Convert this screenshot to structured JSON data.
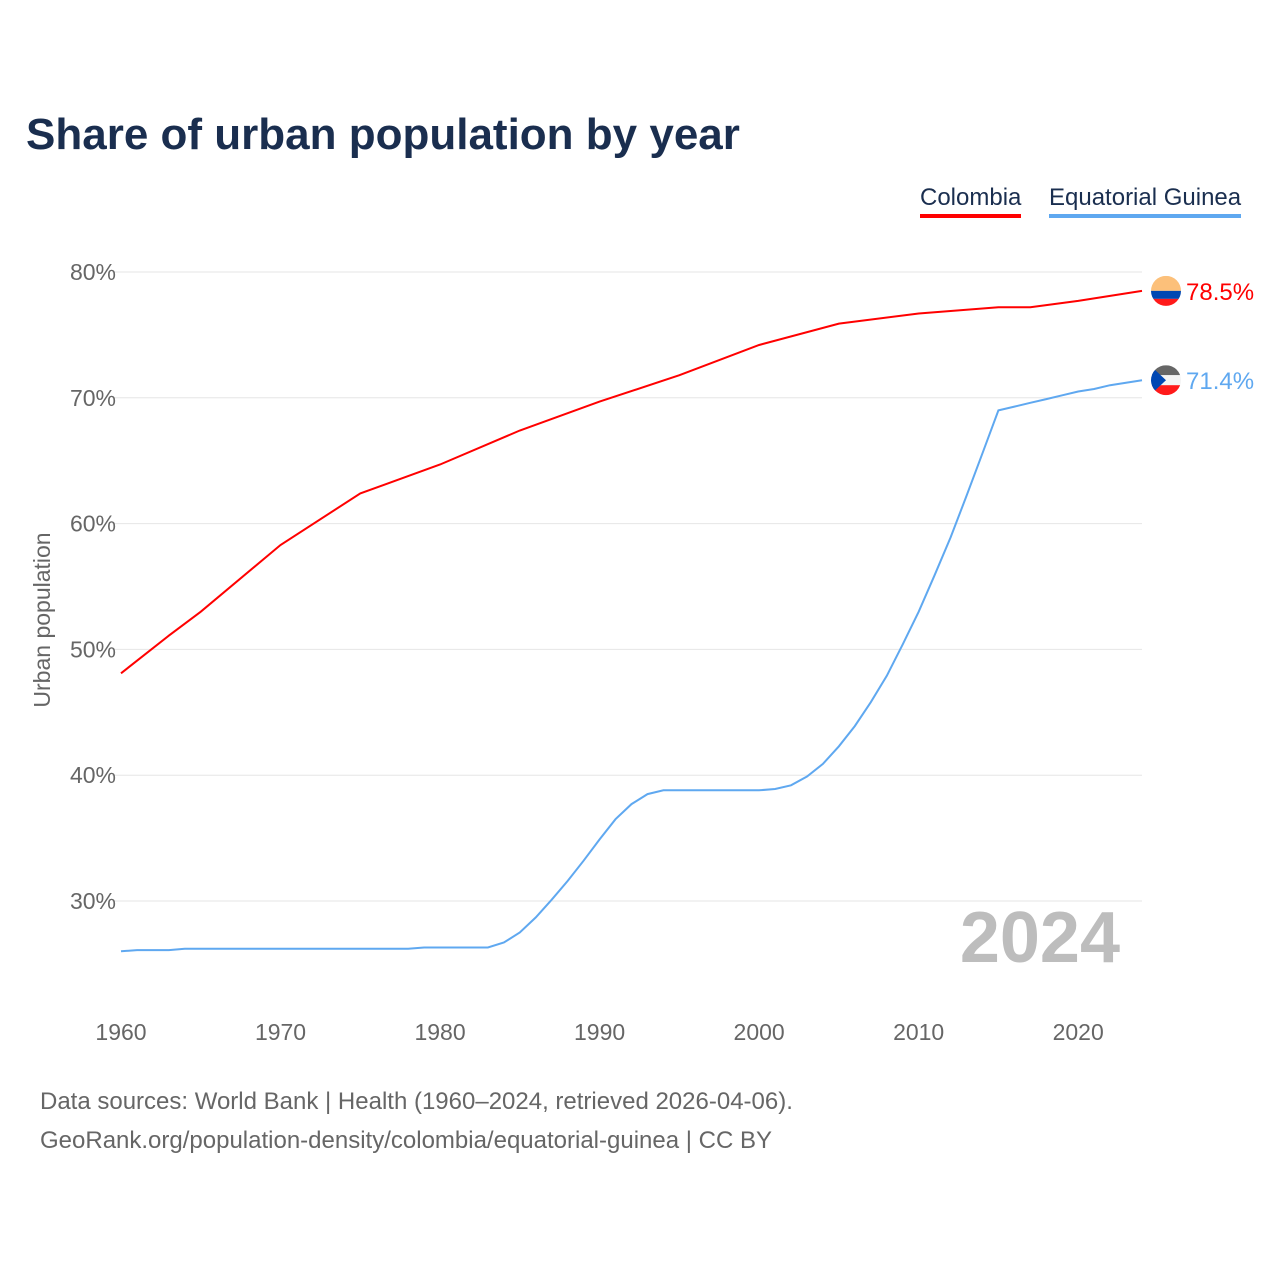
{
  "title": "Share of urban population by year",
  "footer": {
    "line1": "Data sources: World Bank | Health (1960–2024, retrieved 2026-04-06).",
    "line2": "GeoRank.org/population-density/colombia/equatorial-guinea | CC BY"
  },
  "chart_data": {
    "type": "line",
    "title": "Share of urban population by year",
    "xlabel": "",
    "ylabel": "Urban population",
    "xlim": [
      1960,
      2024
    ],
    "ylim": [
      22,
      83
    ],
    "xticks": [
      1960,
      1970,
      1980,
      1990,
      2000,
      2010,
      2020
    ],
    "yticks": [
      30,
      40,
      50,
      60,
      70,
      80
    ],
    "ytick_labels": [
      "30%",
      "40%",
      "50%",
      "60%",
      "70%",
      "80%"
    ],
    "year_label": "2024",
    "legend_position": "top-right",
    "series": [
      {
        "name": "Colombia",
        "color": "#ff0000",
        "end_label": "78.5%",
        "x": [
          1960,
          1963,
          1965,
          1970,
          1975,
          1980,
          1985,
          1990,
          1995,
          2000,
          2005,
          2010,
          2015,
          2017,
          2020,
          2022,
          2024
        ],
        "values": [
          48.1,
          51.1,
          53.0,
          58.3,
          62.4,
          64.7,
          67.4,
          69.7,
          71.8,
          74.2,
          75.9,
          76.7,
          77.2,
          77.2,
          77.7,
          78.1,
          78.5
        ]
      },
      {
        "name": "Equatorial Guinea",
        "color": "#5fa8f0",
        "end_label": "71.4%",
        "x": [
          1960,
          1961,
          1963,
          1964,
          1978,
          1979,
          1983,
          1984,
          1985,
          1986,
          1987,
          1988,
          1989,
          1990,
          1991,
          1992,
          1993,
          1994,
          2000,
          2001,
          2002,
          2003,
          2004,
          2005,
          2006,
          2007,
          2008,
          2009,
          2010,
          2011,
          2012,
          2013,
          2014,
          2015,
          2016,
          2017,
          2018,
          2019,
          2020,
          2021,
          2022,
          2023,
          2024
        ],
        "values": [
          26.0,
          26.1,
          26.1,
          26.2,
          26.2,
          26.3,
          26.3,
          26.7,
          27.5,
          28.7,
          30.1,
          31.6,
          33.2,
          34.9,
          36.5,
          37.7,
          38.5,
          38.8,
          38.8,
          38.9,
          39.2,
          39.9,
          40.9,
          42.3,
          43.9,
          45.8,
          47.9,
          50.4,
          53.0,
          55.9,
          58.9,
          62.2,
          65.6,
          69.0,
          69.3,
          69.6,
          69.9,
          70.2,
          70.5,
          70.7,
          71.0,
          71.2,
          71.4
        ]
      }
    ]
  }
}
